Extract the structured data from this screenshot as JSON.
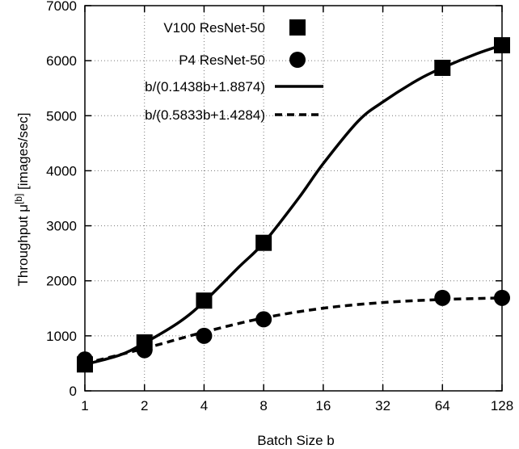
{
  "chart_data": {
    "type": "scatter",
    "xlabel": "Batch Size b",
    "ylabel_prefix": "Throughput μ",
    "ylabel_superscript": "[b]",
    "ylabel_suffix": " [images/sec]",
    "x_scale": "log2",
    "xlim": [
      1,
      128
    ],
    "ylim": [
      0,
      7000
    ],
    "grid": true,
    "legend_position": "top-left",
    "x_ticks": [
      1,
      2,
      4,
      8,
      16,
      32,
      64,
      128
    ],
    "x_tick_labels": [
      "1",
      "2",
      "4",
      "8",
      "16",
      "32",
      "64",
      "128"
    ],
    "y_ticks": [
      0,
      1000,
      2000,
      3000,
      4000,
      5000,
      6000,
      7000
    ],
    "y_tick_labels": [
      "0",
      "1000",
      "2000",
      "3000",
      "4000",
      "5000",
      "6000",
      "7000"
    ],
    "series": [
      {
        "name": "V100 ResNet-50",
        "kind": "points",
        "marker": "square",
        "x": [
          1,
          2,
          4,
          8,
          64,
          128
        ],
        "y": [
          480,
          880,
          1640,
          2690,
          5870,
          6280
        ]
      },
      {
        "name": "P4 ResNet-50",
        "kind": "points",
        "marker": "circle",
        "x": [
          1,
          2,
          4,
          8,
          64,
          128
        ],
        "y": [
          570,
          740,
          1000,
          1300,
          1690,
          1690
        ]
      },
      {
        "name": "b/(0.1438b+1.8874)",
        "kind": "line",
        "style": "solid",
        "x": [
          1,
          1.5,
          2,
          3,
          4,
          6,
          8,
          12,
          16,
          24,
          32,
          48,
          64,
          96,
          128
        ],
        "y": [
          480,
          650,
          870,
          1250,
          1620,
          2250,
          2690,
          3500,
          4130,
          4900,
          5250,
          5650,
          5870,
          6130,
          6280
        ]
      },
      {
        "name": "b/(0.5833b+1.4284)",
        "kind": "line",
        "style": "dashed",
        "x": [
          1,
          2,
          4,
          8,
          16,
          32,
          64,
          128
        ],
        "y": [
          497,
          771,
          1068,
          1325,
          1502,
          1605,
          1660,
          1689
        ]
      }
    ]
  }
}
